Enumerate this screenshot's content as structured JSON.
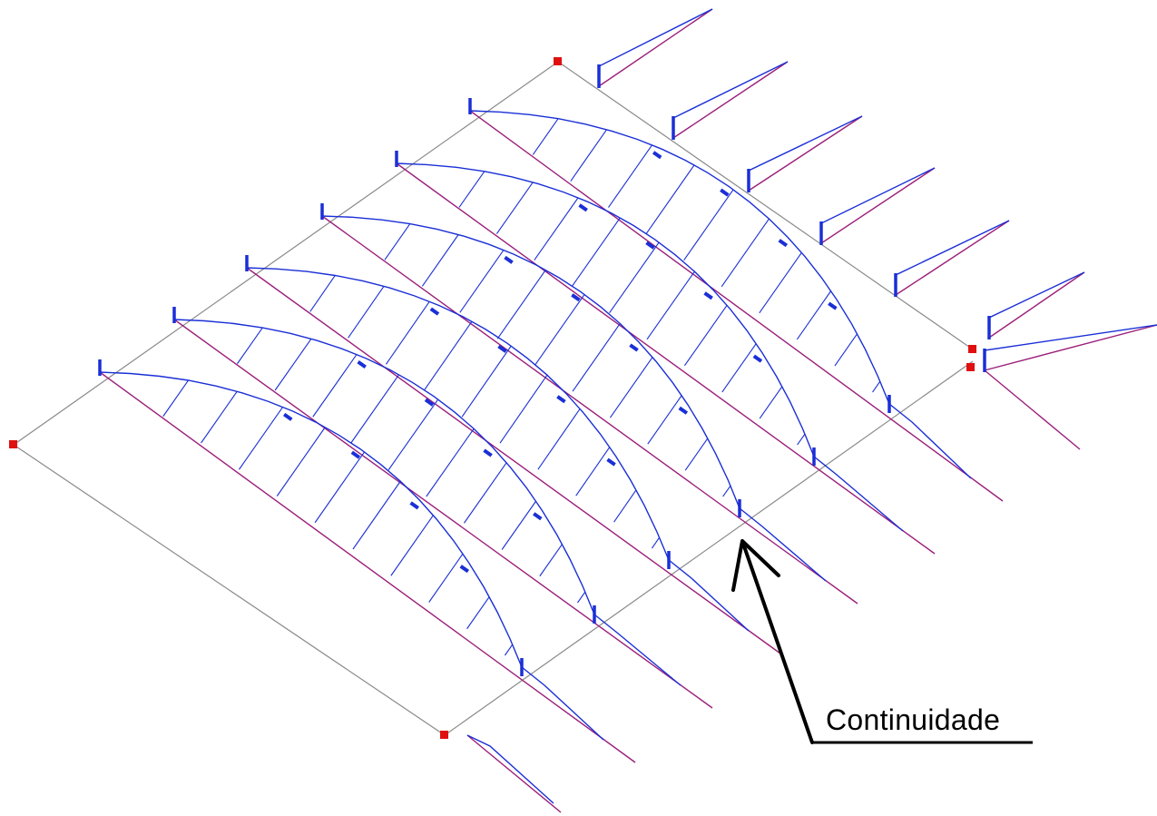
{
  "annotation": {
    "label": "Continuidade"
  },
  "colors": {
    "grid": "#8a8a8a",
    "beam": "#9b1f7a",
    "diagram": "#1a2fd6",
    "node": "#e01010",
    "annotation": "#000000"
  }
}
